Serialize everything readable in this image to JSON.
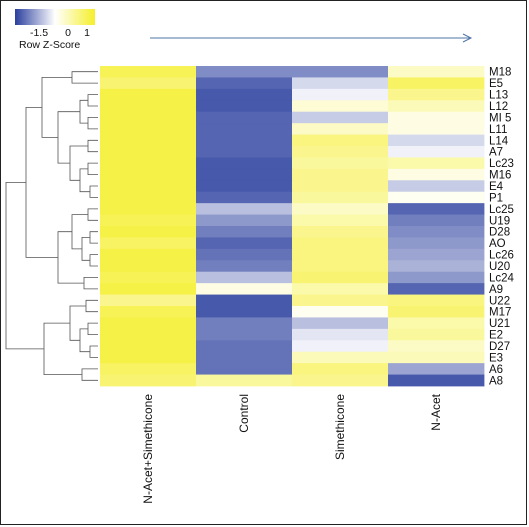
{
  "chart_data": {
    "type": "heatmap",
    "title": "",
    "color_key": {
      "title": "Row Z-Score",
      "ticks": [
        "-1.5",
        "0",
        "1"
      ],
      "low_color": "#2b3f9e",
      "mid_color": "#ffffff",
      "high_color": "#f5ef2a"
    },
    "columns": [
      "N-Acet+Simethicone",
      "Control",
      "Simethicone",
      "N-Acet"
    ],
    "rows": [
      "M18",
      "E5",
      "L13",
      "L12",
      "MI 5",
      "L11",
      "L14",
      "A7",
      "Lc23",
      "M16",
      "E4",
      "P1",
      "Lc25",
      "U19",
      "D28",
      "AO",
      "Lc26",
      "U20",
      "Lc24",
      "A9",
      "U22",
      "M17",
      "U21",
      "E2",
      "D27",
      "E3",
      "A6",
      "A8"
    ],
    "values": [
      [
        1.2,
        -0.9,
        -0.9,
        0.4
      ],
      [
        1.0,
        -1.2,
        -0.3,
        1.1
      ],
      [
        1.3,
        -1.3,
        -0.1,
        0.8
      ],
      [
        1.3,
        -1.3,
        0.3,
        0.5
      ],
      [
        1.3,
        -1.2,
        -0.4,
        0.2
      ],
      [
        1.3,
        -1.2,
        0.4,
        0.2
      ],
      [
        1.3,
        -1.2,
        0.9,
        -0.3
      ],
      [
        1.3,
        -1.2,
        0.8,
        -0.1
      ],
      [
        1.3,
        -1.3,
        0.7,
        0.6
      ],
      [
        1.3,
        -1.3,
        0.8,
        0.2
      ],
      [
        1.3,
        -1.3,
        0.8,
        -0.4
      ],
      [
        1.3,
        -1.2,
        0.7,
        0.1
      ],
      [
        1.3,
        -0.5,
        0.4,
        -1.2
      ],
      [
        1.2,
        -0.8,
        0.6,
        -1.0
      ],
      [
        1.3,
        -1.0,
        0.8,
        -0.9
      ],
      [
        1.1,
        -1.2,
        0.9,
        -0.8
      ],
      [
        1.3,
        -1.1,
        0.9,
        -0.7
      ],
      [
        1.3,
        -1.0,
        0.9,
        -0.6
      ],
      [
        1.2,
        -0.5,
        1.0,
        -0.8
      ],
      [
        1.3,
        0.2,
        0.6,
        -1.2
      ],
      [
        0.8,
        -1.3,
        0.8,
        0.9
      ],
      [
        1.2,
        -1.3,
        0.1,
        1.0
      ],
      [
        1.3,
        -1.0,
        -0.5,
        0.6
      ],
      [
        1.3,
        -1.0,
        -0.2,
        0.7
      ],
      [
        1.3,
        -1.1,
        -0.1,
        0.4
      ],
      [
        1.3,
        -1.1,
        0.5,
        0.5
      ],
      [
        1.1,
        -1.1,
        0.9,
        -0.7
      ],
      [
        1.0,
        0.7,
        0.8,
        -1.3
      ]
    ]
  }
}
